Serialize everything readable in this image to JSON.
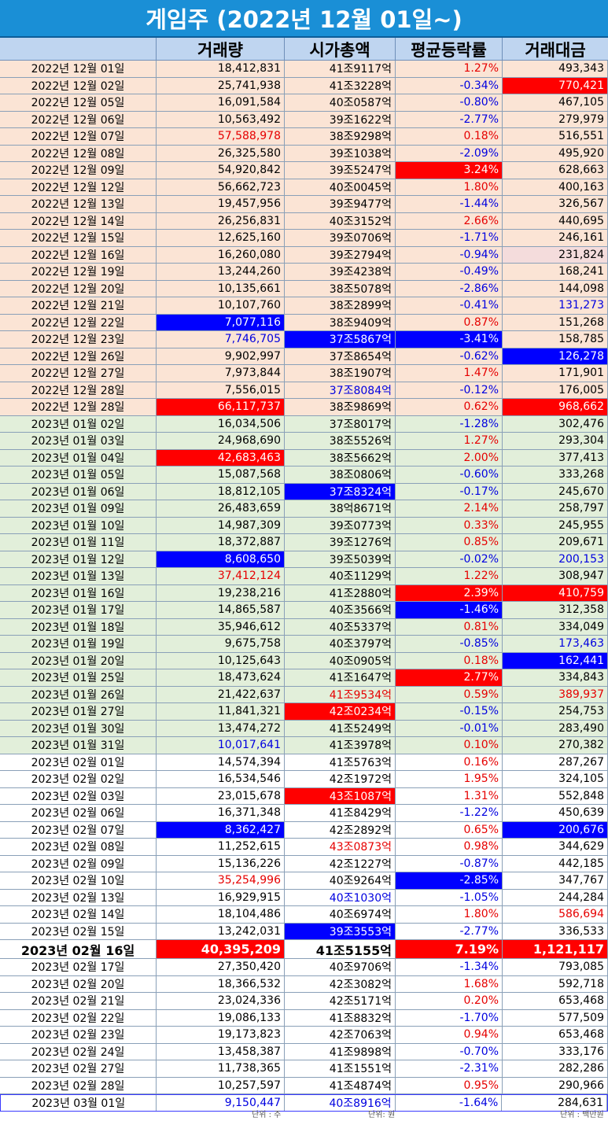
{
  "title": "게임주 (2022년 12월 01일~)",
  "columns": [
    "",
    "거래량",
    "시가총액",
    "평균등락률",
    "거래대금"
  ],
  "units": {
    "volume": "단위 : 주",
    "cap": "단위: 원",
    "amount": "단위 : 백만원"
  },
  "rows": [
    {
      "date": "2022년 12월 01일",
      "vol": "18,412,831",
      "cap": "41조9117억",
      "chg": "1.27%",
      "amt": "493,343",
      "sec": 1,
      "chgc": "fg-red"
    },
    {
      "date": "2022년 12월 02일",
      "vol": "25,741,938",
      "cap": "41조3228억",
      "chg": "-0.34%",
      "amt": "770,421",
      "sec": 1,
      "chgc": "fg-blue",
      "amtc": "bg-red"
    },
    {
      "date": "2022년 12월 05일",
      "vol": "16,091,584",
      "cap": "40조0587억",
      "chg": "-0.80%",
      "amt": "467,105",
      "sec": 1,
      "chgc": "fg-blue"
    },
    {
      "date": "2022년 12월 06일",
      "vol": "10,563,492",
      "cap": "39조1622억",
      "chg": "-2.77%",
      "amt": "279,979",
      "sec": 1,
      "chgc": "fg-blue"
    },
    {
      "date": "2022년 12월 07일",
      "vol": "57,588,978",
      "cap": "38조9298억",
      "chg": "0.18%",
      "amt": "516,551",
      "sec": 1,
      "volc": "fg-red",
      "chgc": "fg-red"
    },
    {
      "date": "2022년 12월 08일",
      "vol": "26,325,580",
      "cap": "39조1038억",
      "chg": "-2.09%",
      "amt": "495,920",
      "sec": 1,
      "chgc": "fg-blue"
    },
    {
      "date": "2022년 12월 09일",
      "vol": "54,920,842",
      "cap": "39조5247억",
      "chg": "3.24%",
      "amt": "628,663",
      "sec": 1,
      "chgc": "bg-red"
    },
    {
      "date": "2022년 12월 12일",
      "vol": "56,662,723",
      "cap": "40조0045억",
      "chg": "1.80%",
      "amt": "400,163",
      "sec": 1,
      "chgc": "fg-red"
    },
    {
      "date": "2022년 12월 13일",
      "vol": "19,457,956",
      "cap": "39조9477억",
      "chg": "-1.44%",
      "amt": "326,567",
      "sec": 1,
      "chgc": "fg-blue"
    },
    {
      "date": "2022년 12월 14일",
      "vol": "26,256,831",
      "cap": "40조3152억",
      "chg": "2.66%",
      "amt": "440,695",
      "sec": 1,
      "chgc": "fg-red"
    },
    {
      "date": "2022년 12월 15일",
      "vol": "12,625,160",
      "cap": "39조0706억",
      "chg": "-1.71%",
      "amt": "246,161",
      "sec": 1,
      "chgc": "fg-blue"
    },
    {
      "date": "2022년 12월 16일",
      "vol": "16,260,080",
      "cap": "39조2794억",
      "chg": "-0.94%",
      "amt": "231,824",
      "sec": 1,
      "chgc": "fg-blue",
      "amtc": "bg-pink"
    },
    {
      "date": "2022년 12월 19일",
      "vol": "13,244,260",
      "cap": "39조4238억",
      "chg": "-0.49%",
      "amt": "168,241",
      "sec": 1,
      "chgc": "fg-blue"
    },
    {
      "date": "2022년 12월 20일",
      "vol": "10,135,661",
      "cap": "38조5078억",
      "chg": "-2.86%",
      "amt": "144,098",
      "sec": 1,
      "chgc": "fg-blue"
    },
    {
      "date": "2022년 12월 21일",
      "vol": "10,107,760",
      "cap": "38조2899억",
      "chg": "-0.41%",
      "amt": "131,273",
      "sec": 1,
      "chgc": "fg-blue",
      "amtc": "fg-blue"
    },
    {
      "date": "2022년 12월 22일",
      "vol": "7,077,116",
      "cap": "38조9409억",
      "chg": "0.87%",
      "amt": "151,268",
      "sec": 1,
      "volc": "bg-blue",
      "chgc": "fg-red"
    },
    {
      "date": "2022년 12월 23일",
      "vol": "7,746,705",
      "cap": "37조5867억",
      "chg": "-3.41%",
      "amt": "158,785",
      "sec": 1,
      "volc": "fg-blue",
      "capc": "bg-blue",
      "chgc": "bg-blue"
    },
    {
      "date": "2022년 12월 26일",
      "vol": "9,902,997",
      "cap": "37조8654억",
      "chg": "-0.62%",
      "amt": "126,278",
      "sec": 1,
      "chgc": "fg-blue",
      "amtc": "bg-blue"
    },
    {
      "date": "2022년 12월 27일",
      "vol": "7,973,844",
      "cap": "38조1907억",
      "chg": "1.47%",
      "amt": "171,901",
      "sec": 1,
      "chgc": "fg-red"
    },
    {
      "date": "2022년 12월 28일",
      "vol": "7,556,015",
      "cap": "37조8084억",
      "chg": "-0.12%",
      "amt": "176,005",
      "sec": 1,
      "capc": "fg-blue",
      "chgc": "fg-blue"
    },
    {
      "date": "2022년 12월 28일",
      "vol": "66,117,737",
      "cap": "38조9869억",
      "chg": "0.62%",
      "amt": "968,662",
      "sec": 1,
      "volc": "bg-red",
      "chgc": "fg-red",
      "amtc": "bg-red"
    },
    {
      "date": "2023년 01월 02일",
      "vol": "16,034,506",
      "cap": "37조8017억",
      "chg": "-1.28%",
      "amt": "302,476",
      "sec": 2,
      "chgc": "fg-blue"
    },
    {
      "date": "2023년 01월 03일",
      "vol": "24,968,690",
      "cap": "38조5526억",
      "chg": "1.27%",
      "amt": "293,304",
      "sec": 2,
      "chgc": "fg-red"
    },
    {
      "date": "2023년 01월 04일",
      "vol": "42,683,463",
      "cap": "38조5662억",
      "chg": "2.00%",
      "amt": "377,413",
      "sec": 2,
      "volc": "bg-red",
      "chgc": "fg-red"
    },
    {
      "date": "2023년 01월 05일",
      "vol": "15,087,568",
      "cap": "38조0806억",
      "chg": "-0.60%",
      "amt": "333,268",
      "sec": 2,
      "chgc": "fg-blue"
    },
    {
      "date": "2023년 01월 06일",
      "vol": "18,812,105",
      "cap": "37조8324억",
      "chg": "-0.17%",
      "amt": "245,670",
      "sec": 2,
      "capc": "bg-blue",
      "chgc": "fg-blue"
    },
    {
      "date": "2023년 01월 09일",
      "vol": "26,483,659",
      "cap": "38억8671억",
      "chg": "2.14%",
      "amt": "258,797",
      "sec": 2,
      "chgc": "fg-red"
    },
    {
      "date": "2023년 01월 10일",
      "vol": "14,987,309",
      "cap": "39조0773억",
      "chg": "0.33%",
      "amt": "245,955",
      "sec": 2,
      "chgc": "fg-red"
    },
    {
      "date": "2023년 01월 11일",
      "vol": "18,372,887",
      "cap": "39조1276억",
      "chg": "0.85%",
      "amt": "209,671",
      "sec": 2,
      "chgc": "fg-red"
    },
    {
      "date": "2023년 01월 12일",
      "vol": "8,608,650",
      "cap": "39조5039억",
      "chg": "-0.02%",
      "amt": "200,153",
      "sec": 2,
      "volc": "bg-blue",
      "chgc": "fg-blue",
      "amtc": "fg-blue"
    },
    {
      "date": "2023년 01월 13일",
      "vol": "37,412,124",
      "cap": "40조1129억",
      "chg": "1.22%",
      "amt": "308,947",
      "sec": 2,
      "volc": "fg-red",
      "chgc": "fg-red"
    },
    {
      "date": "2023년 01월 16일",
      "vol": "19,238,216",
      "cap": "41조2880억",
      "chg": "2.39%",
      "amt": "410,759",
      "sec": 2,
      "chgc": "bg-red",
      "amtc": "bg-red"
    },
    {
      "date": "2023년 01월 17일",
      "vol": "14,865,587",
      "cap": "40조3566억",
      "chg": "-1.46%",
      "amt": "312,358",
      "sec": 2,
      "chgc": "bg-blue"
    },
    {
      "date": "2023년 01월 18일",
      "vol": "35,946,612",
      "cap": "40조5337억",
      "chg": "0.81%",
      "amt": "334,049",
      "sec": 2,
      "chgc": "fg-red"
    },
    {
      "date": "2023년 01월 19일",
      "vol": "9,675,758",
      "cap": "40조3797억",
      "chg": "-0.85%",
      "amt": "173,463",
      "sec": 2,
      "chgc": "fg-blue",
      "amtc": "fg-blue"
    },
    {
      "date": "2023년 01월 20일",
      "vol": "10,125,643",
      "cap": "40조0905억",
      "chg": "0.18%",
      "amt": "162,441",
      "sec": 2,
      "chgc": "fg-red",
      "amtc": "bg-blue"
    },
    {
      "date": "2023년 01월 25일",
      "vol": "18,473,624",
      "cap": "41조1647억",
      "chg": "2.77%",
      "amt": "334,843",
      "sec": 2,
      "chgc": "bg-red"
    },
    {
      "date": "2023년 01월 26일",
      "vol": "21,422,637",
      "cap": "41조9534억",
      "chg": "0.59%",
      "amt": "389,937",
      "sec": 2,
      "capc": "fg-red",
      "chgc": "fg-red",
      "amtc": "fg-red"
    },
    {
      "date": "2023년 01월 27일",
      "vol": "11,841,321",
      "cap": "42조0234억",
      "chg": "-0.15%",
      "amt": "254,753",
      "sec": 2,
      "capc": "bg-red",
      "chgc": "fg-blue"
    },
    {
      "date": "2023년 01월 30일",
      "vol": "13,474,272",
      "cap": "41조5249억",
      "chg": "-0.01%",
      "amt": "283,490",
      "sec": 2,
      "chgc": "fg-blue"
    },
    {
      "date": "2023년 01월 31일",
      "vol": "10,017,641",
      "cap": "41조3978억",
      "chg": "0.10%",
      "amt": "270,382",
      "sec": 2,
      "volc": "fg-blue",
      "chgc": "fg-red"
    },
    {
      "date": "2023년 02월 01일",
      "vol": "14,574,394",
      "cap": "41조5763억",
      "chg": "0.16%",
      "amt": "287,267",
      "sec": 3,
      "chgc": "fg-red"
    },
    {
      "date": "2023년 02월 02일",
      "vol": "16,534,546",
      "cap": "42조1972억",
      "chg": "1.95%",
      "amt": "324,105",
      "sec": 3,
      "chgc": "fg-red"
    },
    {
      "date": "2023년 02월 03일",
      "vol": "23,015,678",
      "cap": "43조1087억",
      "chg": "1.31%",
      "amt": "552,848",
      "sec": 3,
      "capc": "bg-red",
      "chgc": "fg-red"
    },
    {
      "date": "2023년 02월 06일",
      "vol": "16,371,348",
      "cap": "41조8429억",
      "chg": "-1.22%",
      "amt": "450,639",
      "sec": 3,
      "chgc": "fg-blue"
    },
    {
      "date": "2023년 02월 07일",
      "vol": "8,362,427",
      "cap": "42조2892억",
      "chg": "0.65%",
      "amt": "200,676",
      "sec": 3,
      "volc": "bg-blue",
      "chgc": "fg-red",
      "amtc": "bg-blue"
    },
    {
      "date": "2023년 02월 08일",
      "vol": "11,252,615",
      "cap": "43조0873억",
      "chg": "0.98%",
      "amt": "344,629",
      "sec": 3,
      "capc": "fg-red",
      "chgc": "fg-red"
    },
    {
      "date": "2023년 02월 09일",
      "vol": "15,136,226",
      "cap": "42조1227억",
      "chg": "-0.87%",
      "amt": "442,185",
      "sec": 3,
      "chgc": "fg-blue"
    },
    {
      "date": "2023년 02월 10일",
      "vol": "35,254,996",
      "cap": "40조9264억",
      "chg": "-2.85%",
      "amt": "347,767",
      "sec": 3,
      "volc": "fg-red",
      "chgc": "bg-blue"
    },
    {
      "date": "2023년 02월 13일",
      "vol": "16,929,915",
      "cap": "40조1030억",
      "chg": "-1.05%",
      "amt": "244,284",
      "sec": 3,
      "capc": "fg-blue",
      "chgc": "fg-blue"
    },
    {
      "date": "2023년 02월 14일",
      "vol": "18,104,486",
      "cap": "40조6974억",
      "chg": "1.80%",
      "amt": "586,694",
      "sec": 3,
      "chgc": "fg-red",
      "amtc": "fg-red"
    },
    {
      "date": "2023년 02월 15일",
      "vol": "13,242,031",
      "cap": "39조3553억",
      "chg": "-2.77%",
      "amt": "336,533",
      "sec": 3,
      "capc": "bg-blue",
      "chgc": "fg-blue"
    },
    {
      "date": "2023년 02월 16일",
      "vol": "40,395,209",
      "cap": "41조5155억",
      "chg": "7.19%",
      "amt": "1,121,117",
      "sec": 3,
      "big": true,
      "volc": "bg-red",
      "chgc": "bg-red",
      "amtc": "bg-red"
    },
    {
      "date": "2023년 02월 17일",
      "vol": "27,350,420",
      "cap": "40조9706억",
      "chg": "-1.34%",
      "amt": "793,085",
      "sec": 3,
      "chgc": "fg-blue"
    },
    {
      "date": "2023년 02월 20일",
      "vol": "18,366,532",
      "cap": "42조3082억",
      "chg": "1.68%",
      "amt": "592,718",
      "sec": 3,
      "chgc": "fg-red"
    },
    {
      "date": "2023년 02월 21일",
      "vol": "23,024,336",
      "cap": "42조5171억",
      "chg": "0.20%",
      "amt": "653,468",
      "sec": 3,
      "chgc": "fg-red"
    },
    {
      "date": "2023년 02월 22일",
      "vol": "19,086,133",
      "cap": "41조8832억",
      "chg": "-1.70%",
      "amt": "577,509",
      "sec": 3,
      "chgc": "fg-blue"
    },
    {
      "date": "2023년 02월 23일",
      "vol": "19,173,823",
      "cap": "42조7063억",
      "chg": "0.94%",
      "amt": "653,468",
      "sec": 3,
      "chgc": "fg-red"
    },
    {
      "date": "2023년 02월 24일",
      "vol": "13,458,387",
      "cap": "41조9898억",
      "chg": "-0.70%",
      "amt": "333,176",
      "sec": 3,
      "chgc": "fg-blue"
    },
    {
      "date": "2023년 02월 27일",
      "vol": "11,738,365",
      "cap": "41조1551억",
      "chg": "-2.31%",
      "amt": "282,286",
      "sec": 3,
      "chgc": "fg-blue"
    },
    {
      "date": "2023년 02월 28일",
      "vol": "10,257,597",
      "cap": "41조4874억",
      "chg": "0.95%",
      "amt": "290,966",
      "sec": 3,
      "chgc": "fg-red"
    },
    {
      "date": "2023년 03월 01일",
      "vol": "9,150,447",
      "cap": "40조8916억",
      "chg": "-1.64%",
      "amt": "284,631",
      "sec": 3,
      "outline": true,
      "volc": "fg-blue",
      "capc": "fg-blue",
      "chgc": "fg-blue"
    }
  ]
}
